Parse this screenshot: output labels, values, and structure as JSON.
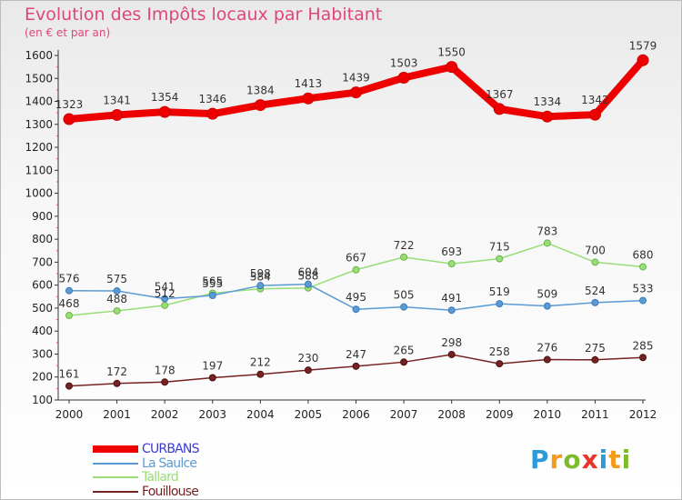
{
  "title": "Evolution des Impôts locaux par Habitant",
  "subtitle": "(en € et par an)",
  "logo": {
    "letters": [
      "P",
      "r",
      "o",
      "x",
      "i",
      "t",
      "i"
    ],
    "colors": [
      "#2d9ad8",
      "#f49a1b",
      "#7dbb2a",
      "#e8352a",
      "#2d9ad8",
      "#f49a1b",
      "#7dbb2a"
    ]
  },
  "chart_data": {
    "type": "line",
    "x": [
      "2000",
      "2001",
      "2002",
      "2003",
      "2004",
      "2005",
      "2006",
      "2007",
      "2008",
      "2009",
      "2010",
      "2011",
      "2012"
    ],
    "ylim": [
      100,
      1600
    ],
    "yticks": [
      100,
      200,
      300,
      400,
      500,
      600,
      700,
      800,
      900,
      1000,
      1100,
      1200,
      1300,
      1400,
      1500,
      1600
    ],
    "grid": false,
    "legend_position": "bottom-left",
    "series": [
      {
        "name": "CURBANS",
        "color": "#ee0000",
        "values": [
          1323,
          1341,
          1354,
          1346,
          1384,
          1413,
          1439,
          1503,
          1550,
          1367,
          1334,
          1342,
          1579
        ]
      },
      {
        "name": "La Saulce",
        "color": "#5b9bd5",
        "values": [
          576,
          575,
          541,
          555,
          598,
          604,
          495,
          505,
          491,
          519,
          509,
          524,
          533
        ]
      },
      {
        "name": "Tallard",
        "color": "#99dd77",
        "values": [
          468,
          488,
          512,
          565,
          584,
          588,
          667,
          722,
          693,
          715,
          783,
          700,
          680
        ]
      },
      {
        "name": "Fouillouse",
        "color": "#772222",
        "values": [
          161,
          172,
          178,
          197,
          212,
          230,
          247,
          265,
          298,
          258,
          276,
          275,
          285
        ]
      }
    ]
  }
}
